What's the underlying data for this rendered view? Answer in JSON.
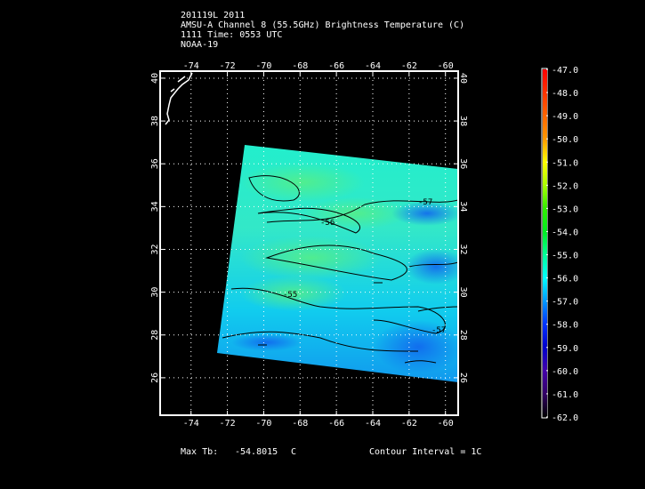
{
  "header": {
    "line1": "201119L 2011",
    "line2": "AMSU-A Channel 8 (55.5GHz) Brightness Temperature (C)",
    "line3": "1111 Time: 0553 UTC",
    "line4": "NOAA-19"
  },
  "map": {
    "lon_ticks": [
      "-74",
      "-72",
      "-70",
      "-68",
      "-66",
      "-64",
      "-62",
      "-60"
    ],
    "lon_values": [
      -74,
      -72,
      -70,
      -68,
      -66,
      -64,
      -62,
      -60
    ],
    "lat_ticks": [
      "40",
      "38",
      "36",
      "34",
      "32",
      "30",
      "28",
      "26"
    ],
    "lat_values": [
      40,
      38,
      36,
      34,
      32,
      30,
      28,
      26
    ],
    "lon_range": [
      -75.7,
      -59.3
    ],
    "lat_range": [
      24.25,
      40.33
    ],
    "contour_labels": [
      "-57",
      "-56",
      "-55",
      "-57"
    ]
  },
  "colorbar": {
    "labels": [
      "-47.0",
      "-48.0",
      "-49.0",
      "-50.0",
      "-51.0",
      "-52.0",
      "-53.0",
      "-54.0",
      "-55.0",
      "-56.0",
      "-57.0",
      "-58.0",
      "-59.0",
      "-60.0",
      "-61.0",
      "-62.0"
    ],
    "colors": [
      "#ff0000",
      "#ff3300",
      "#ff6600",
      "#ff9900",
      "#ffff00",
      "#aaff00",
      "#33ee00",
      "#00ee22",
      "#00ff99",
      "#00ffff",
      "#0099ff",
      "#0033ff",
      "#0000cc",
      "#4400aa",
      "#330066",
      "#000000"
    ]
  },
  "footer": {
    "max_label": "Max Tb:",
    "max_value": "-54.8015",
    "max_unit": "C",
    "contour_interval": "Contour Interval = 1C"
  }
}
